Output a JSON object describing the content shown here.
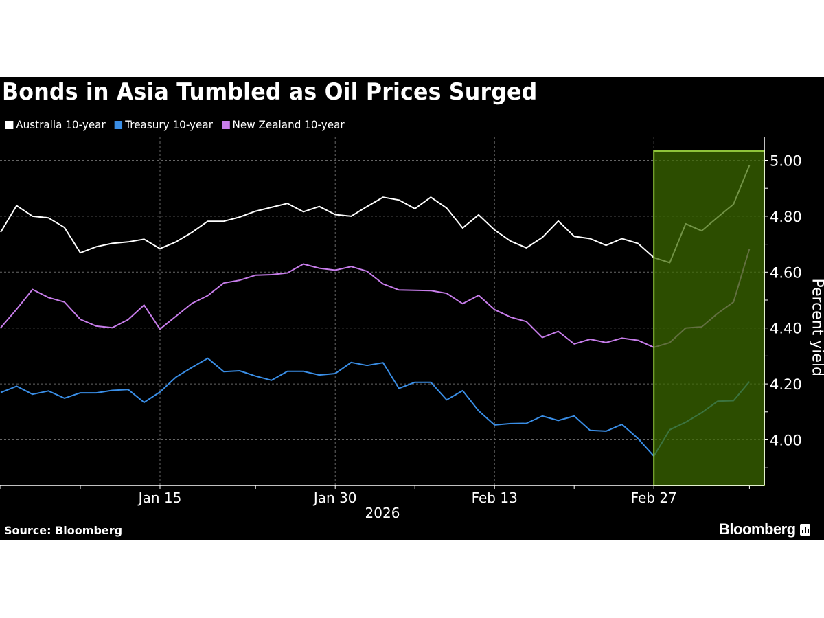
{
  "chart_data": {
    "type": "line",
    "title": "Bonds in Asia Tumbled as Oil Prices Surged",
    "ylabel": "Percent yield",
    "xlabel": "2026",
    "ylim": [
      3.83,
      5.09
    ],
    "yticks": [
      "4.00",
      "4.20",
      "4.40",
      "4.60",
      "4.80",
      "5.00"
    ],
    "ytick_values": [
      4.0,
      4.2,
      4.4,
      4.6,
      4.8,
      5.0
    ],
    "x_index_range": [
      0,
      47
    ],
    "xtick_labels": [
      {
        "label": "Jan 15",
        "index": 10
      },
      {
        "label": "Jan 30",
        "index": 21
      },
      {
        "label": "Feb 13",
        "index": 31
      },
      {
        "label": "Feb 27",
        "index": 41
      }
    ],
    "minor_tick_indices": [
      0,
      5,
      10,
      16,
      21,
      26,
      31,
      36,
      41,
      47
    ],
    "highlight": {
      "from_index": 41,
      "to_index": 47.5,
      "color": "#3d6b00",
      "border": "#8fc43a"
    },
    "grid": true,
    "legend_position": "top-left",
    "series": [
      {
        "name": "Australia 10-year",
        "color": "#ffffff",
        "values": [
          4.743,
          4.838,
          4.8,
          4.794,
          4.76,
          4.669,
          4.691,
          4.703,
          4.708,
          4.718,
          4.684,
          4.708,
          4.742,
          4.782,
          4.782,
          4.797,
          4.818,
          4.832,
          4.846,
          4.816,
          4.835,
          4.806,
          4.8,
          4.835,
          4.868,
          4.858,
          4.827,
          4.868,
          4.829,
          4.758,
          4.805,
          4.751,
          4.711,
          4.687,
          4.724,
          4.783,
          4.728,
          4.72,
          4.696,
          4.72,
          4.703,
          4.652,
          4.634,
          4.773,
          4.748,
          4.796,
          4.843,
          4.982
        ]
      },
      {
        "name": "Treasury 10-year",
        "color": "#3a8ee6",
        "values": [
          4.169,
          4.192,
          4.163,
          4.175,
          4.149,
          4.168,
          4.168,
          4.177,
          4.18,
          4.134,
          4.171,
          4.224,
          4.259,
          4.292,
          4.244,
          4.247,
          4.228,
          4.213,
          4.245,
          4.245,
          4.232,
          4.237,
          4.277,
          4.266,
          4.276,
          4.184,
          4.206,
          4.206,
          4.143,
          4.176,
          4.104,
          4.053,
          4.058,
          4.059,
          4.085,
          4.069,
          4.085,
          4.034,
          4.031,
          4.055,
          4.005,
          3.942,
          4.036,
          4.063,
          4.097,
          4.138,
          4.14,
          4.208
        ]
      },
      {
        "name": "New Zealand 10-year",
        "color": "#c77dea",
        "values": [
          4.401,
          4.467,
          4.538,
          4.509,
          4.493,
          4.431,
          4.407,
          4.401,
          4.43,
          4.482,
          4.396,
          4.442,
          4.488,
          4.516,
          4.561,
          4.571,
          4.589,
          4.591,
          4.597,
          4.629,
          4.614,
          4.607,
          4.62,
          4.603,
          4.558,
          4.536,
          4.535,
          4.534,
          4.524,
          4.487,
          4.517,
          4.466,
          4.439,
          4.423,
          4.366,
          4.388,
          4.343,
          4.36,
          4.348,
          4.364,
          4.356,
          4.331,
          4.348,
          4.4,
          4.404,
          4.452,
          4.493,
          4.683
        ]
      }
    ]
  },
  "footer": {
    "source": "Source: Bloomberg",
    "brand": "Bloomberg"
  }
}
